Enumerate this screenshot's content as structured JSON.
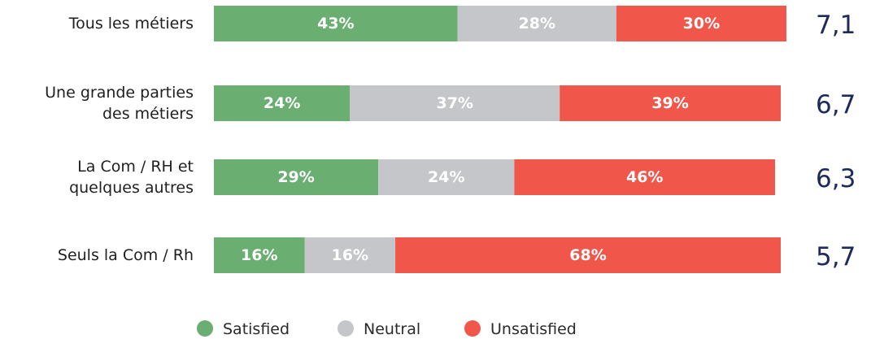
{
  "chart_data": {
    "type": "stacked-bar",
    "orientation": "horizontal",
    "categories": [
      "Tous les métiers",
      "Une grande parties\ndes métiers",
      "La Com / RH et\nquelques autres",
      "Seuls la Com / Rh"
    ],
    "series": [
      {
        "name": "Satisfied",
        "color": "#6aae72",
        "values": [
          43,
          24,
          29,
          16
        ],
        "value_labels": [
          "43%",
          "24%",
          "29%",
          "16%"
        ]
      },
      {
        "name": "Neutral",
        "color": "#c4c6c9",
        "values": [
          28,
          37,
          24,
          16
        ],
        "value_labels": [
          "28%",
          "37%",
          "24%",
          "16%"
        ]
      },
      {
        "name": "Unsatisfied",
        "color": "#f0564a",
        "values": [
          30,
          39,
          46,
          68
        ],
        "value_labels": [
          "30%",
          "39%",
          "46%",
          "68%"
        ]
      }
    ],
    "scores": [
      {
        "value": 7.1,
        "label": "7,1"
      },
      {
        "value": 6.7,
        "label": "6,7"
      },
      {
        "value": 6.3,
        "label": "6,3"
      },
      {
        "value": 5.7,
        "label": "5,7"
      }
    ],
    "legend": "bottom"
  }
}
